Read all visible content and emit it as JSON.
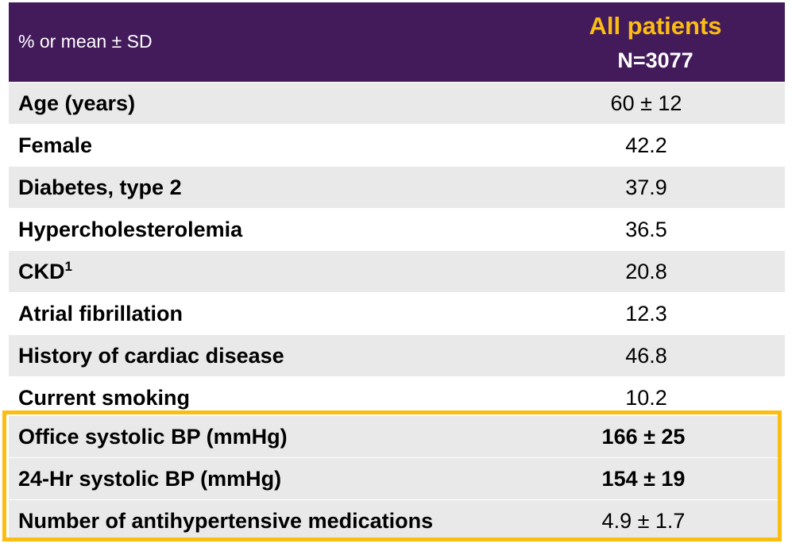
{
  "header": {
    "label": "% or mean ± SD",
    "column_title": "All patients",
    "column_n": "N=3077"
  },
  "rows": [
    {
      "name": "Age (years)",
      "sup": "",
      "value": "60 ± 12"
    },
    {
      "name": "Female",
      "sup": "",
      "value": "42.2"
    },
    {
      "name": "Diabetes, type 2",
      "sup": "",
      "value": "37.9"
    },
    {
      "name": "Hypercholesterolemia",
      "sup": "",
      "value": "36.5"
    },
    {
      "name": "CKD",
      "sup": "1",
      "value": "20.8"
    },
    {
      "name": "Atrial fibrillation",
      "sup": "",
      "value": "12.3"
    },
    {
      "name": "History of cardiac disease",
      "sup": "",
      "value": "46.8"
    },
    {
      "name": "Current smoking",
      "sup": "",
      "value": "10.2"
    }
  ],
  "highlighted_rows": [
    {
      "name": "Office systolic BP (mmHg)",
      "value": "166 ± 25"
    },
    {
      "name": "24-Hr systolic BP (mmHg)",
      "value": "154 ± 19"
    },
    {
      "name": "Number of antihypertensive medications",
      "value": "4.9 ± 1.7"
    }
  ],
  "colors": {
    "header_bg": "#431b5b",
    "accent": "#fbbd12",
    "row_shade": "#e9e9e9"
  }
}
